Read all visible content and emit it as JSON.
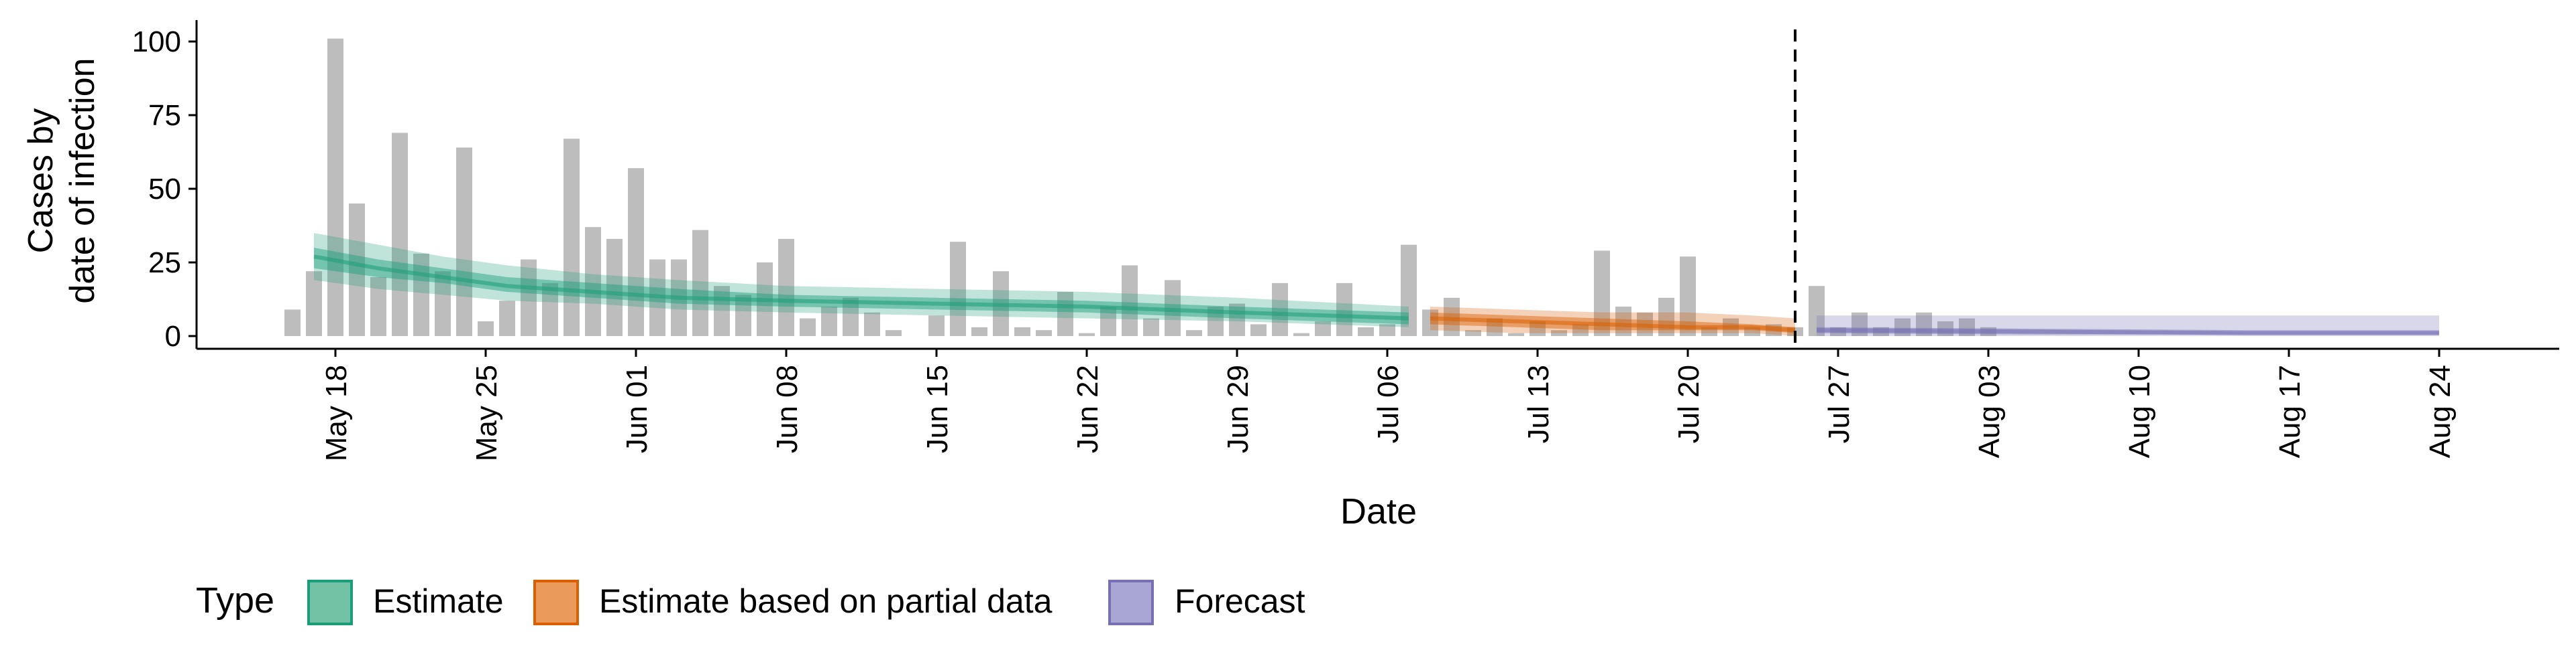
{
  "chart_data": {
    "type": "bar",
    "title": "",
    "ylabel_lines": [
      "Cases by",
      "date of infection"
    ],
    "xlabel": "Date",
    "ylim": [
      0,
      105
    ],
    "yticks": [
      0,
      25,
      50,
      75,
      100
    ],
    "x_range": [
      "2020-05-10",
      "2020-08-31"
    ],
    "xticks": [
      {
        "date": "2020-05-18",
        "label": "May 18"
      },
      {
        "date": "2020-05-25",
        "label": "May 25"
      },
      {
        "date": "2020-06-01",
        "label": "Jun 01"
      },
      {
        "date": "2020-06-08",
        "label": "Jun 08"
      },
      {
        "date": "2020-06-15",
        "label": "Jun 15"
      },
      {
        "date": "2020-06-22",
        "label": "Jun 22"
      },
      {
        "date": "2020-06-29",
        "label": "Jun 29"
      },
      {
        "date": "2020-07-06",
        "label": "Jul 06"
      },
      {
        "date": "2020-07-13",
        "label": "Jul 13"
      },
      {
        "date": "2020-07-20",
        "label": "Jul 20"
      },
      {
        "date": "2020-07-27",
        "label": "Jul 27"
      },
      {
        "date": "2020-08-03",
        "label": "Aug 03"
      },
      {
        "date": "2020-08-10",
        "label": "Aug 10"
      },
      {
        "date": "2020-08-17",
        "label": "Aug 17"
      },
      {
        "date": "2020-08-24",
        "label": "Aug 24"
      }
    ],
    "bar_start_date": "2020-05-16",
    "observed_cases": [
      9,
      22,
      101,
      45,
      20,
      69,
      28,
      22,
      64,
      5,
      12,
      26,
      18,
      67,
      37,
      33,
      57,
      26,
      26,
      36,
      17,
      14,
      25,
      33,
      6,
      10,
      13,
      8,
      2,
      0,
      7,
      32,
      3,
      22,
      3,
      2,
      15,
      1,
      10,
      24,
      6,
      19,
      2,
      10,
      11,
      4,
      18,
      1,
      5,
      18,
      3,
      4,
      31,
      9,
      13,
      2,
      6,
      1,
      5,
      2,
      4,
      29,
      10,
      8,
      13,
      27,
      3,
      6,
      3,
      4,
      3,
      17,
      3,
      8,
      3,
      6,
      8,
      5,
      6,
      3
    ],
    "vertical_line_date": "2020-07-25",
    "series": [
      {
        "name": "Estimate",
        "color": "#1b9e77",
        "dates": [
          "2020-05-17",
          "2020-05-20",
          "2020-05-23",
          "2020-05-26",
          "2020-05-30",
          "2020-06-03",
          "2020-06-08",
          "2020-06-15",
          "2020-06-22",
          "2020-06-29",
          "2020-07-07"
        ],
        "median": [
          27,
          23,
          20,
          17,
          15,
          13,
          12,
          11,
          10,
          8,
          6
        ],
        "ci_outer": [
          [
            19,
            35
          ],
          [
            16,
            31
          ],
          [
            14,
            27
          ],
          [
            12,
            24
          ],
          [
            11,
            21
          ],
          [
            9,
            19
          ],
          [
            8,
            17
          ],
          [
            7,
            16
          ],
          [
            6,
            15
          ],
          [
            5,
            13
          ],
          [
            3,
            10
          ]
        ],
        "ci_inner": [
          [
            23,
            30
          ],
          [
            20,
            26
          ],
          [
            18,
            23
          ],
          [
            15,
            20
          ],
          [
            13,
            18
          ],
          [
            11,
            16
          ],
          [
            10,
            14
          ],
          [
            9,
            13
          ],
          [
            8,
            12
          ],
          [
            6,
            10
          ],
          [
            4,
            8
          ]
        ]
      },
      {
        "name": "Estimate based on partial data",
        "color": "#d95f02",
        "dates": [
          "2020-07-08",
          "2020-07-12",
          "2020-07-16",
          "2020-07-20",
          "2020-07-23",
          "2020-07-25"
        ],
        "median": [
          6,
          5,
          4,
          3,
          3,
          2
        ],
        "ci_outer": [
          [
            2,
            10
          ],
          [
            1,
            9
          ],
          [
            1,
            8
          ],
          [
            1,
            8
          ],
          [
            1,
            7
          ],
          [
            0,
            6
          ]
        ],
        "ci_inner": [
          [
            4,
            8
          ],
          [
            3,
            7
          ],
          [
            2,
            6
          ],
          [
            2,
            5
          ],
          [
            2,
            4
          ],
          [
            1,
            3
          ]
        ]
      },
      {
        "name": "Forecast",
        "color": "#7570b3",
        "dates": [
          "2020-07-26",
          "2020-08-05",
          "2020-08-15",
          "2020-08-24"
        ],
        "median": [
          2,
          1.5,
          1,
          1
        ],
        "ci_outer": [
          [
            0,
            7
          ],
          [
            0,
            7
          ],
          [
            0,
            7
          ],
          [
            0,
            7
          ]
        ],
        "ci_inner": [
          [
            1,
            3
          ],
          [
            0.5,
            2.5
          ],
          [
            0.5,
            2
          ],
          [
            0.5,
            2
          ]
        ]
      }
    ],
    "legend": {
      "position": "bottom-left",
      "title": "Type",
      "items": [
        "Estimate",
        "Estimate based on partial data",
        "Forecast"
      ]
    }
  }
}
